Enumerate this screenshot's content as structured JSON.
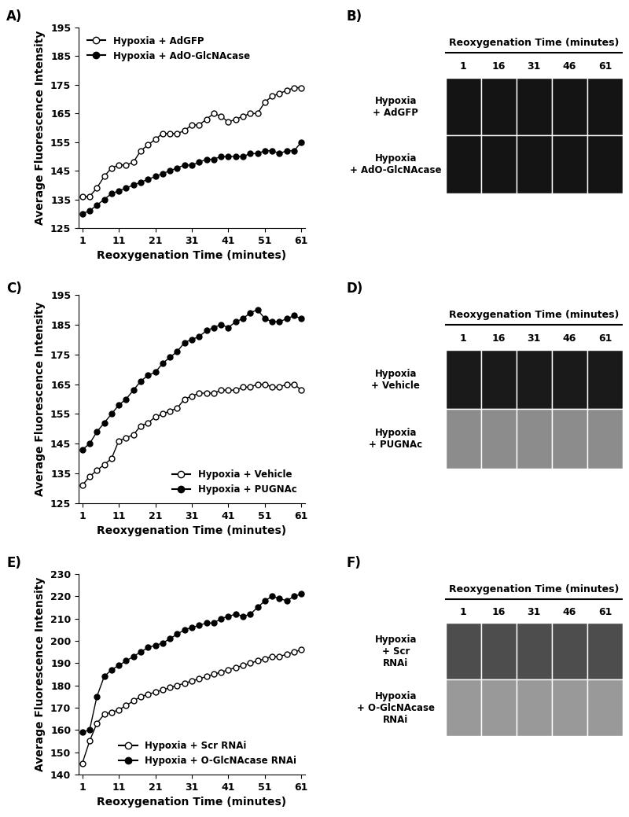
{
  "chart_data": [
    {
      "type": "line",
      "panel": "A)",
      "x_label": "Reoxygenation Time (minutes)",
      "y_label": "Average Fluorescence Intensity",
      "x": [
        1,
        3,
        5,
        7,
        9,
        11,
        13,
        15,
        17,
        19,
        21,
        23,
        25,
        27,
        29,
        31,
        33,
        35,
        37,
        39,
        41,
        43,
        45,
        47,
        49,
        51,
        53,
        55,
        57,
        59,
        61
      ],
      "series": [
        {
          "name": "Hypoxia + AdGFP",
          "color": "#000000",
          "marker": "open_circle",
          "line_style": "solid",
          "values": [
            136,
            136,
            139,
            143,
            146,
            147,
            147,
            148,
            152,
            154,
            156,
            158,
            158,
            158,
            159,
            161,
            161,
            163,
            165,
            164,
            162,
            163,
            164,
            165,
            165,
            169,
            171,
            172,
            173,
            174,
            174
          ]
        },
        {
          "name": "Hypoxia + AdO-GlcNAcase",
          "color": "#000000",
          "marker": "filled_circle",
          "line_style": "solid",
          "values": [
            130,
            131,
            133,
            135,
            137,
            138,
            139,
            140,
            141,
            142,
            143,
            144,
            145,
            146,
            147,
            147,
            148,
            149,
            149,
            150,
            150,
            150,
            150,
            151,
            151,
            152,
            152,
            151,
            152,
            152,
            155
          ]
        }
      ],
      "xlim": [
        0,
        62
      ],
      "xticks": [
        1,
        11,
        21,
        31,
        41,
        51,
        61
      ],
      "ylim": [
        125,
        195
      ],
      "yticks": [
        125,
        135,
        145,
        155,
        165,
        175,
        185,
        195
      ],
      "legend": "upper left"
    },
    {
      "type": "line",
      "panel": "C)",
      "x_label": "Reoxygenation Time (minutes)",
      "y_label": "Average Fluorescence Intensity",
      "x": [
        1,
        3,
        5,
        7,
        9,
        11,
        13,
        15,
        17,
        19,
        21,
        23,
        25,
        27,
        29,
        31,
        33,
        35,
        37,
        39,
        41,
        43,
        45,
        47,
        49,
        51,
        53,
        55,
        57,
        59,
        61
      ],
      "series": [
        {
          "name": "Hypoxia + Vehicle",
          "color": "#000000",
          "marker": "open_circle",
          "line_style": "solid",
          "values": [
            131,
            134,
            136,
            138,
            140,
            146,
            147,
            148,
            151,
            152,
            154,
            155,
            156,
            157,
            160,
            161,
            162,
            162,
            162,
            163,
            163,
            163,
            164,
            164,
            165,
            165,
            164,
            164,
            165,
            165,
            163
          ]
        },
        {
          "name": "Hypoxia + PUGNAc",
          "color": "#000000",
          "marker": "filled_circle",
          "line_style": "solid",
          "values": [
            143,
            145,
            149,
            152,
            155,
            158,
            160,
            163,
            166,
            168,
            169,
            172,
            174,
            176,
            179,
            180,
            181,
            183,
            184,
            185,
            184,
            186,
            187,
            189,
            190,
            187,
            186,
            186,
            187,
            188,
            187
          ]
        }
      ],
      "xlim": [
        0,
        62
      ],
      "xticks": [
        1,
        11,
        21,
        31,
        41,
        51,
        61
      ],
      "ylim": [
        125,
        195
      ],
      "yticks": [
        125,
        135,
        145,
        155,
        165,
        175,
        185,
        195
      ],
      "legend": "lower right"
    },
    {
      "type": "line",
      "panel": "E)",
      "x_label": "Reoxygenation Time (minutes)",
      "y_label": "Average Fluorescence Intensity",
      "x": [
        1,
        3,
        5,
        7,
        9,
        11,
        13,
        15,
        17,
        19,
        21,
        23,
        25,
        27,
        29,
        31,
        33,
        35,
        37,
        39,
        41,
        43,
        45,
        47,
        49,
        51,
        53,
        55,
        57,
        59,
        61
      ],
      "series": [
        {
          "name": "Hypoxia + Scr RNAi",
          "color": "#000000",
          "marker": "open_circle",
          "line_style": "solid",
          "values": [
            145,
            155,
            163,
            167,
            168,
            169,
            171,
            173,
            175,
            176,
            177,
            178,
            179,
            180,
            181,
            182,
            183,
            184,
            185,
            186,
            187,
            188,
            189,
            190,
            191,
            192,
            193,
            193,
            194,
            195,
            196
          ]
        },
        {
          "name": "Hypoxia + O-GlcNAcase RNAi",
          "color": "#000000",
          "marker": "filled_circle",
          "line_style": "solid",
          "values": [
            159,
            160,
            175,
            184,
            187,
            189,
            191,
            193,
            195,
            197,
            198,
            199,
            201,
            203,
            205,
            206,
            207,
            208,
            208,
            210,
            211,
            212,
            211,
            212,
            215,
            218,
            220,
            219,
            218,
            220,
            221
          ]
        }
      ],
      "xlim": [
        0,
        62
      ],
      "xticks": [
        1,
        11,
        21,
        31,
        41,
        51,
        61
      ],
      "ylim": [
        140,
        230
      ],
      "yticks": [
        140,
        150,
        160,
        170,
        180,
        190,
        200,
        210,
        220,
        230
      ],
      "legend": "lower right"
    }
  ],
  "image_panels": [
    {
      "panel": "B)",
      "header": "Reoxygenation Time (minutes)",
      "times": [
        1,
        16,
        31,
        46,
        61
      ],
      "rows": [
        "Hypoxia\n+ AdGFP",
        "Hypoxia\n+ AdO-GlcNAcase"
      ]
    },
    {
      "panel": "D)",
      "header": "Reoxygenation Time (minutes)",
      "times": [
        1,
        16,
        31,
        46,
        61
      ],
      "rows": [
        "Hypoxia\n+ Vehicle",
        "Hypoxia\n+ PUGNAc"
      ]
    },
    {
      "panel": "F)",
      "header": "Reoxygenation Time (minutes)",
      "times": [
        1,
        16,
        31,
        46,
        61
      ],
      "rows": [
        "Hypoxia\n+ Scr\nRNAi",
        "Hypoxia\n+ O-GlcNAcase\nRNAi"
      ]
    }
  ]
}
